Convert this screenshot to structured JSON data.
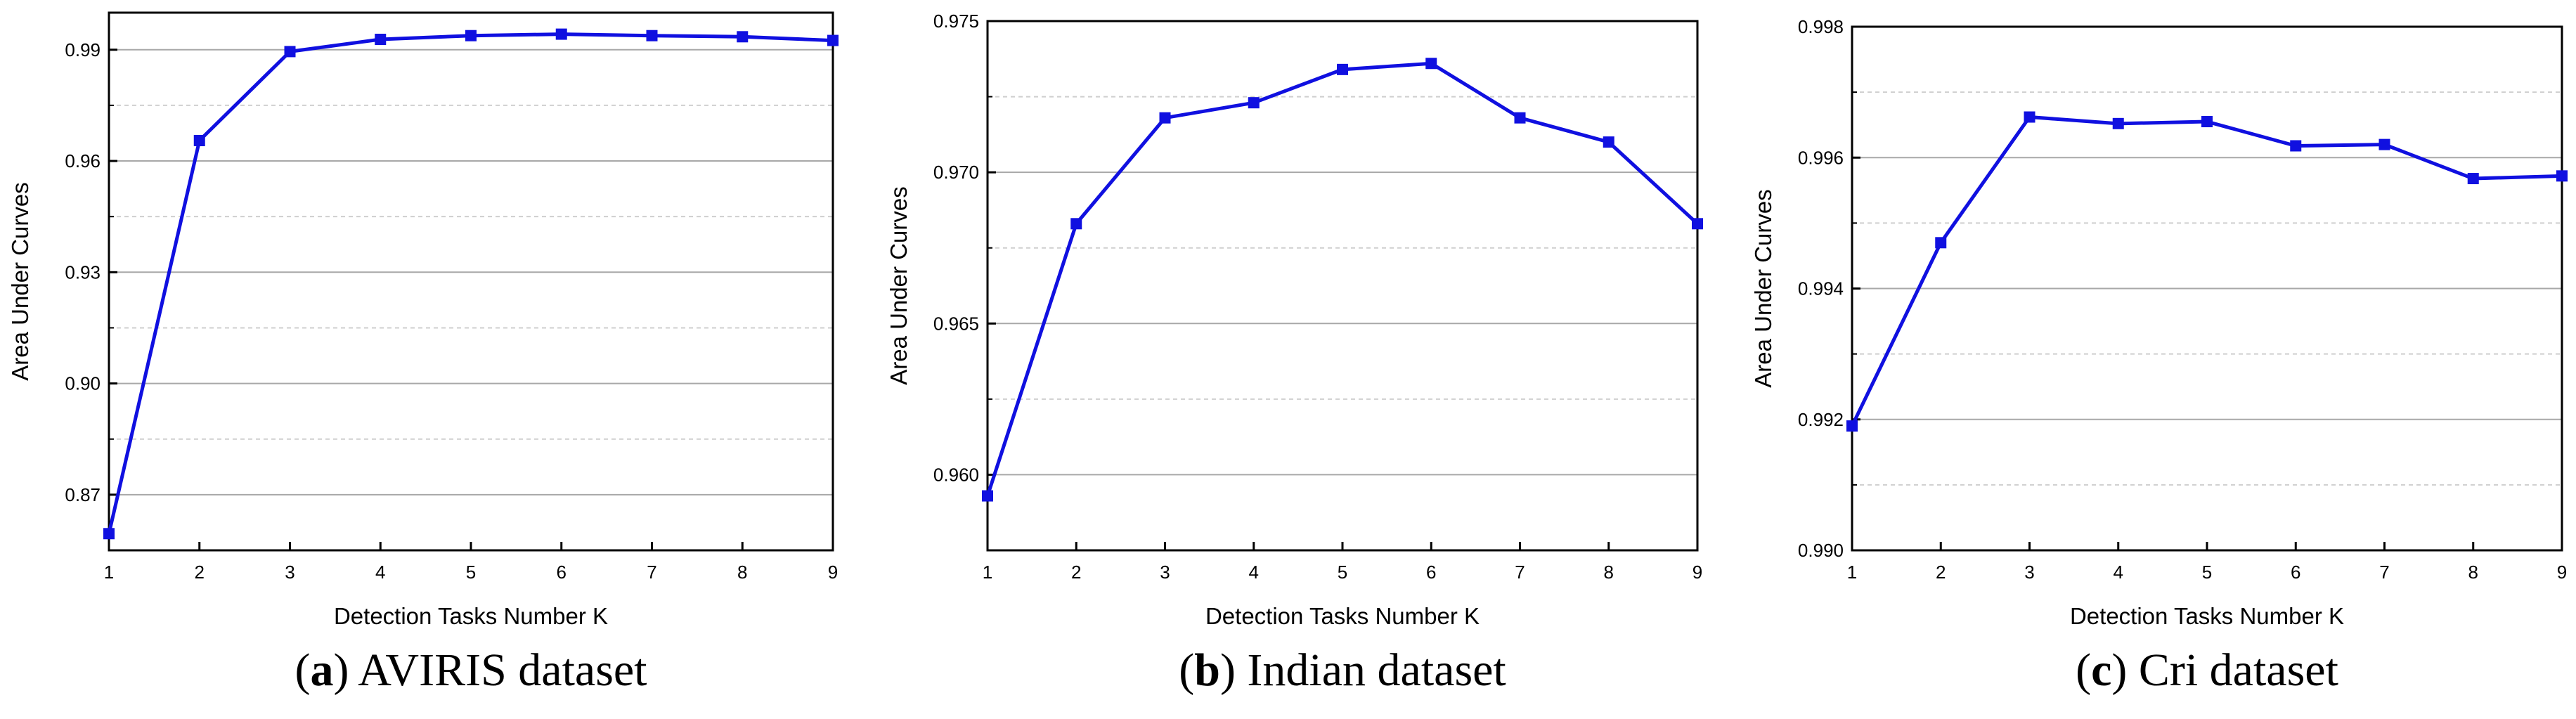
{
  "chart_data": [
    {
      "type": "line",
      "caption": {
        "open": "(",
        "letter": "a",
        "rest": ") AVIRIS dataset"
      },
      "xlabel": "Detection Tasks Number K",
      "ylabel": "Area Under Curves",
      "xlim": [
        1,
        9
      ],
      "ylim": [
        0.855,
        1.0
      ],
      "x_ticks": [
        "1",
        "2",
        "3",
        "4",
        "5",
        "6",
        "7",
        "8",
        "9"
      ],
      "y_ticks": [
        "0.87",
        "0.90",
        "0.93",
        "0.96",
        "0.99"
      ],
      "y_tick_values": [
        0.87,
        0.9,
        0.93,
        0.96,
        0.99
      ],
      "grid": true,
      "x": [
        1,
        2,
        3,
        4,
        5,
        6,
        7,
        8,
        9
      ],
      "values": [
        0.8595,
        0.9655,
        0.9895,
        0.9928,
        0.9938,
        0.9942,
        0.9938,
        0.9935,
        0.9925
      ],
      "color": "#1010e0"
    },
    {
      "type": "line",
      "caption": {
        "open": "(",
        "letter": "b",
        "rest": ") Indian dataset"
      },
      "xlabel": "Detection Tasks Number K",
      "ylabel": "Area Under Curves",
      "xlim": [
        1,
        9
      ],
      "ylim": [
        0.9575,
        0.975
      ],
      "x_ticks": [
        "1",
        "2",
        "3",
        "4",
        "5",
        "6",
        "7",
        "8",
        "9"
      ],
      "y_ticks": [
        "0.960",
        "0.965",
        "0.970",
        "0.975"
      ],
      "y_tick_values": [
        0.96,
        0.965,
        0.97,
        0.975
      ],
      "grid": true,
      "x": [
        1,
        2,
        3,
        4,
        5,
        6,
        7,
        8,
        9
      ],
      "values": [
        0.9593,
        0.9683,
        0.9718,
        0.9723,
        0.9734,
        0.9736,
        0.9718,
        0.971,
        0.9683
      ],
      "color": "#1010e0"
    },
    {
      "type": "line",
      "caption": {
        "open": "(",
        "letter": "c",
        "rest": ") Cri dataset"
      },
      "xlabel": "Detection Tasks Number K",
      "ylabel": "Area Under Curves",
      "xlim": [
        1,
        9
      ],
      "ylim": [
        0.99,
        0.998
      ],
      "x_ticks": [
        "1",
        "2",
        "3",
        "4",
        "5",
        "6",
        "7",
        "8",
        "9"
      ],
      "y_ticks": [
        "0.990",
        "0.992",
        "0.994",
        "0.996",
        "0.998"
      ],
      "y_tick_values": [
        0.99,
        0.992,
        0.994,
        0.996,
        0.998
      ],
      "grid": true,
      "x": [
        1,
        2,
        3,
        4,
        5,
        6,
        7,
        8,
        9
      ],
      "values": [
        0.9919,
        0.9947,
        0.99662,
        0.99652,
        0.99655,
        0.99618,
        0.9962,
        0.99568,
        0.99572
      ],
      "color": "#1010e0"
    }
  ]
}
